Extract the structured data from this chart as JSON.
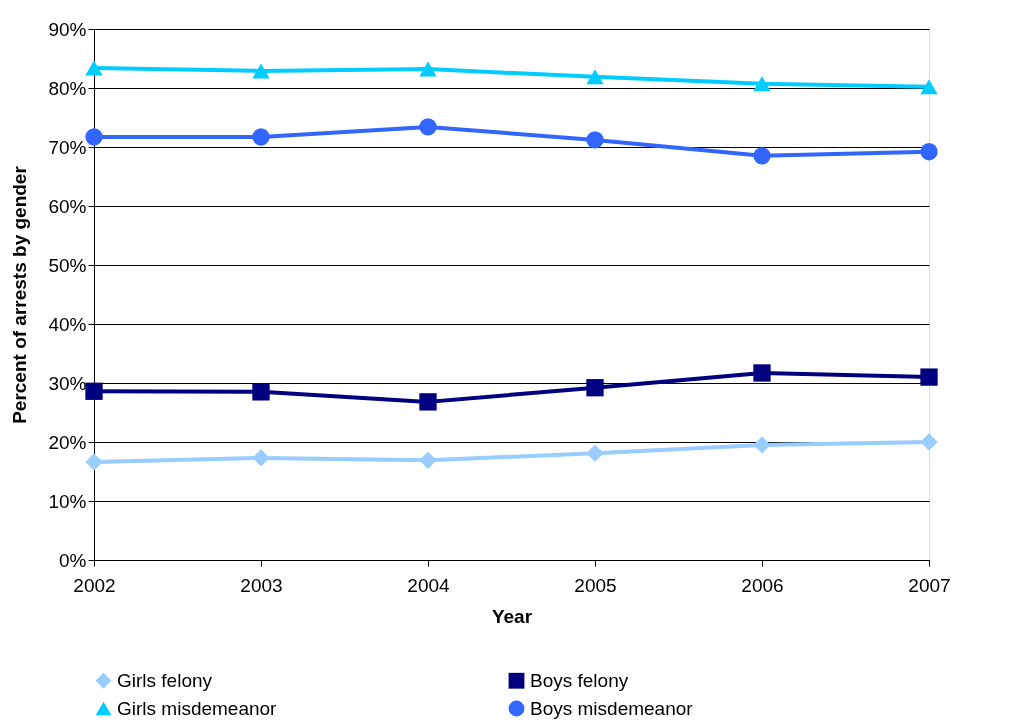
{
  "chart_data": {
    "type": "line",
    "xlabel": "Year",
    "ylabel": "Percent of arrests by gender",
    "x": [
      2002,
      2003,
      2004,
      2005,
      2006,
      2007
    ],
    "xlim": [
      2002,
      2007
    ],
    "xticks": [
      2002,
      2003,
      2004,
      2005,
      2006,
      2007
    ],
    "ylim": [
      0,
      90
    ],
    "yticks": [
      {
        "value": 0,
        "label": "0%"
      },
      {
        "value": 10,
        "label": "10%"
      },
      {
        "value": 20,
        "label": "20%"
      },
      {
        "value": 30,
        "label": "30%"
      },
      {
        "value": 40,
        "label": "40%"
      },
      {
        "value": 50,
        "label": "50%"
      },
      {
        "value": 60,
        "label": "60%"
      },
      {
        "value": 70,
        "label": "70%"
      },
      {
        "value": 80,
        "label": "80%"
      },
      {
        "value": 90,
        "label": "90%"
      }
    ],
    "grid": "y",
    "legend": "bottom",
    "line_style": "solid",
    "series": [
      {
        "name": "Girls felony",
        "color": "#99ccff",
        "marker": "diamond",
        "values": [
          16.6,
          17.3,
          16.9,
          18.1,
          19.5,
          20.0
        ]
      },
      {
        "name": "Boys felony",
        "color": "#000080",
        "marker": "square",
        "values": [
          28.6,
          28.5,
          26.8,
          29.2,
          31.7,
          31.0
        ]
      },
      {
        "name": "Girls misdemeanor",
        "color": "#00ccff",
        "marker": "triangle",
        "values": [
          83.4,
          82.9,
          83.2,
          81.9,
          80.7,
          80.2
        ]
      },
      {
        "name": "Boys misdemeanor",
        "color": "#3366ff",
        "marker": "circle",
        "values": [
          71.7,
          71.7,
          73.4,
          71.2,
          68.5,
          69.2
        ]
      }
    ]
  }
}
